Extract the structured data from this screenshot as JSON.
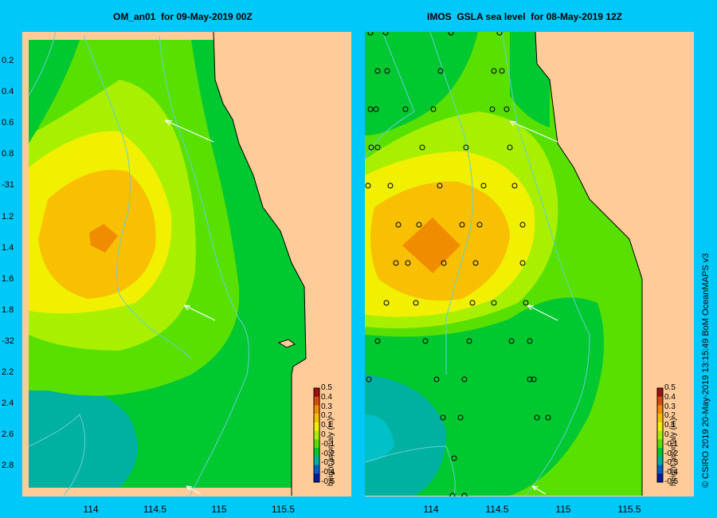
{
  "panels": {
    "left_title": "OM_an01  for 09-May-2019 00Z",
    "right_title": "IMOS  GSLA sea level  for 08-May-2019 12Z"
  },
  "y_axis_labels": [
    "0.2",
    "0.4",
    "0.6",
    "0.8",
    "-31",
    "1.2",
    "1.4",
    "1.6",
    "1.8",
    "-32",
    "2.2",
    "2.4",
    "2.6",
    "2.8"
  ],
  "x_axis_labels": [
    "114",
    "114.5",
    "115",
    "115.5"
  ],
  "colorbar": {
    "title": "height anomaly (m)",
    "labels": [
      "0.5",
      "0.4",
      "0.3",
      "0.2",
      "0.1",
      "0",
      "-0.1",
      "-0.2",
      "-0.3",
      "-0.4",
      "-0.5"
    ],
    "colors": [
      "#a01010",
      "#d84810",
      "#f08c00",
      "#f8c000",
      "#f0f000",
      "#a8f000",
      "#58e000",
      "#00c830",
      "#00b0a0",
      "#0060c8",
      "#0818a0"
    ]
  },
  "credit": "© CSIRO 2019  20-May-2019 13:15:49 BoM OceanMAPS v3",
  "colors": {
    "background": "#00c8f8",
    "land": "#ffcc99",
    "coast": "#000000",
    "isobath": "#66d0d0",
    "arrow": "#ffffff"
  }
}
